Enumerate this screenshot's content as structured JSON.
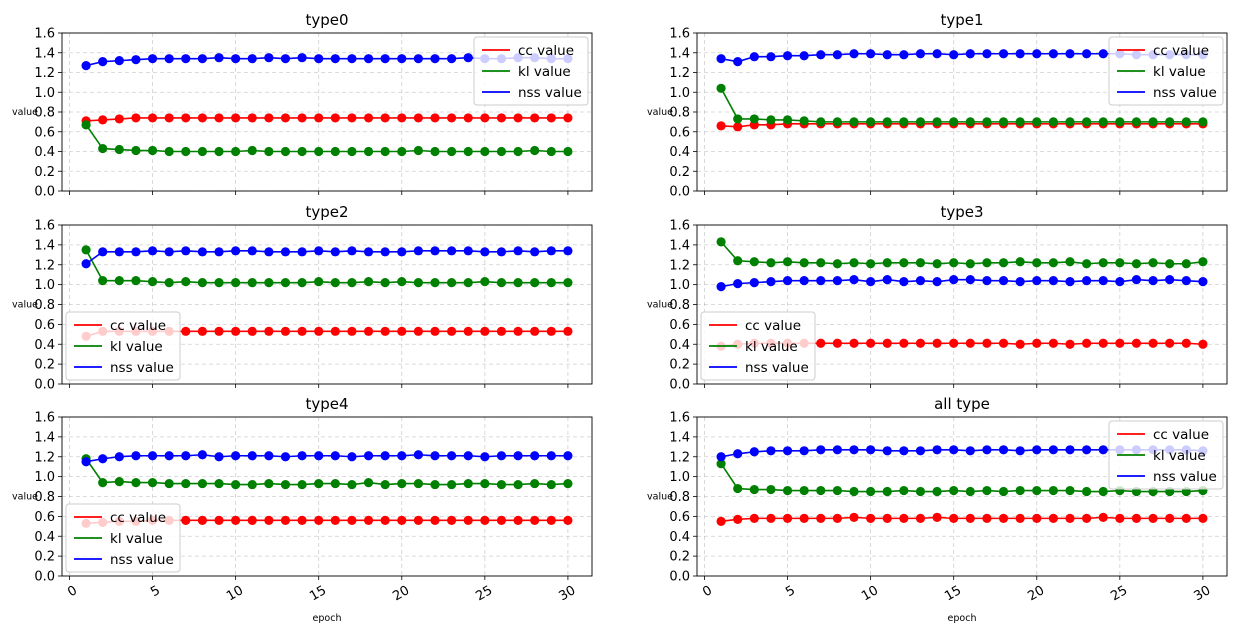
{
  "chart_data": [
    {
      "type": "line",
      "title": "type0",
      "ylabel": "value",
      "xlabel": "",
      "x": [
        1,
        2,
        3,
        4,
        5,
        6,
        7,
        8,
        9,
        10,
        11,
        12,
        13,
        14,
        15,
        16,
        17,
        18,
        19,
        20,
        21,
        22,
        23,
        24,
        25,
        26,
        27,
        28,
        29,
        30
      ],
      "xticks": [
        0,
        5,
        10,
        15,
        20,
        25,
        30
      ],
      "ylim": [
        0,
        1.6
      ],
      "yticks": [
        "0.0",
        "0.2",
        "0.4",
        "0.6",
        "0.8",
        "1.0",
        "1.2",
        "1.4",
        "1.6"
      ],
      "show_xticklabels": false,
      "grid": true,
      "legend": "top-right",
      "series": [
        {
          "name": "cc value",
          "color": "#ff0000",
          "values": [
            0.71,
            0.72,
            0.73,
            0.74,
            0.74,
            0.74,
            0.74,
            0.74,
            0.74,
            0.74,
            0.74,
            0.74,
            0.74,
            0.74,
            0.74,
            0.74,
            0.74,
            0.74,
            0.74,
            0.74,
            0.74,
            0.74,
            0.74,
            0.74,
            0.74,
            0.74,
            0.74,
            0.74,
            0.74,
            0.74
          ]
        },
        {
          "name": "kl value",
          "color": "#008000",
          "values": [
            0.67,
            0.43,
            0.42,
            0.41,
            0.41,
            0.4,
            0.4,
            0.4,
            0.4,
            0.4,
            0.41,
            0.4,
            0.4,
            0.4,
            0.4,
            0.4,
            0.4,
            0.4,
            0.4,
            0.4,
            0.41,
            0.4,
            0.4,
            0.4,
            0.4,
            0.4,
            0.4,
            0.41,
            0.4,
            0.4
          ]
        },
        {
          "name": "nss value",
          "color": "#0000ff",
          "values": [
            1.27,
            1.31,
            1.32,
            1.33,
            1.34,
            1.34,
            1.34,
            1.34,
            1.35,
            1.34,
            1.34,
            1.35,
            1.34,
            1.35,
            1.34,
            1.34,
            1.34,
            1.34,
            1.34,
            1.34,
            1.34,
            1.34,
            1.34,
            1.35,
            1.34,
            1.34,
            1.35,
            1.35,
            1.34,
            1.34
          ]
        }
      ]
    },
    {
      "type": "line",
      "title": "type1",
      "ylabel": "value",
      "xlabel": "",
      "x": [
        1,
        2,
        3,
        4,
        5,
        6,
        7,
        8,
        9,
        10,
        11,
        12,
        13,
        14,
        15,
        16,
        17,
        18,
        19,
        20,
        21,
        22,
        23,
        24,
        25,
        26,
        27,
        28,
        29,
        30
      ],
      "xticks": [
        0,
        5,
        10,
        15,
        20,
        25,
        30
      ],
      "ylim": [
        0,
        1.6
      ],
      "yticks": [
        "0.0",
        "0.2",
        "0.4",
        "0.6",
        "0.8",
        "1.0",
        "1.2",
        "1.4",
        "1.6"
      ],
      "show_xticklabels": false,
      "grid": true,
      "legend": "top-right",
      "series": [
        {
          "name": "cc value",
          "color": "#ff0000",
          "values": [
            0.66,
            0.65,
            0.67,
            0.67,
            0.68,
            0.68,
            0.68,
            0.68,
            0.68,
            0.68,
            0.68,
            0.68,
            0.68,
            0.68,
            0.68,
            0.68,
            0.68,
            0.68,
            0.68,
            0.68,
            0.68,
            0.68,
            0.68,
            0.68,
            0.68,
            0.68,
            0.68,
            0.68,
            0.68,
            0.68
          ]
        },
        {
          "name": "kl value",
          "color": "#008000",
          "values": [
            1.04,
            0.73,
            0.73,
            0.72,
            0.72,
            0.71,
            0.7,
            0.7,
            0.7,
            0.7,
            0.7,
            0.7,
            0.7,
            0.7,
            0.7,
            0.7,
            0.7,
            0.7,
            0.7,
            0.7,
            0.7,
            0.7,
            0.7,
            0.7,
            0.7,
            0.7,
            0.7,
            0.7,
            0.7,
            0.7
          ]
        },
        {
          "name": "nss value",
          "color": "#0000ff",
          "values": [
            1.34,
            1.31,
            1.36,
            1.36,
            1.37,
            1.37,
            1.38,
            1.38,
            1.39,
            1.39,
            1.38,
            1.38,
            1.39,
            1.39,
            1.38,
            1.39,
            1.39,
            1.39,
            1.39,
            1.39,
            1.39,
            1.39,
            1.39,
            1.39,
            1.39,
            1.38,
            1.38,
            1.38,
            1.38,
            1.38
          ]
        }
      ]
    },
    {
      "type": "line",
      "title": "type2",
      "ylabel": "value",
      "xlabel": "",
      "x": [
        1,
        2,
        3,
        4,
        5,
        6,
        7,
        8,
        9,
        10,
        11,
        12,
        13,
        14,
        15,
        16,
        17,
        18,
        19,
        20,
        21,
        22,
        23,
        24,
        25,
        26,
        27,
        28,
        29,
        30
      ],
      "xticks": [
        0,
        5,
        10,
        15,
        20,
        25,
        30
      ],
      "ylim": [
        0,
        1.6
      ],
      "yticks": [
        "0.0",
        "0.2",
        "0.4",
        "0.6",
        "0.8",
        "1.0",
        "1.2",
        "1.4",
        "1.6"
      ],
      "show_xticklabels": false,
      "grid": true,
      "legend": "bottom-left",
      "series": [
        {
          "name": "cc value",
          "color": "#ff0000",
          "values": [
            0.48,
            0.53,
            0.53,
            0.53,
            0.53,
            0.53,
            0.53,
            0.53,
            0.53,
            0.53,
            0.53,
            0.53,
            0.53,
            0.53,
            0.53,
            0.53,
            0.53,
            0.53,
            0.53,
            0.53,
            0.53,
            0.53,
            0.53,
            0.53,
            0.53,
            0.53,
            0.53,
            0.53,
            0.53,
            0.53
          ]
        },
        {
          "name": "kl value",
          "color": "#008000",
          "values": [
            1.35,
            1.04,
            1.04,
            1.04,
            1.03,
            1.02,
            1.03,
            1.02,
            1.02,
            1.02,
            1.02,
            1.02,
            1.02,
            1.02,
            1.03,
            1.02,
            1.02,
            1.03,
            1.02,
            1.03,
            1.02,
            1.02,
            1.02,
            1.02,
            1.03,
            1.02,
            1.02,
            1.02,
            1.02,
            1.02
          ]
        },
        {
          "name": "nss value",
          "color": "#0000ff",
          "values": [
            1.21,
            1.33,
            1.33,
            1.33,
            1.34,
            1.33,
            1.34,
            1.33,
            1.33,
            1.34,
            1.34,
            1.33,
            1.33,
            1.33,
            1.34,
            1.33,
            1.34,
            1.33,
            1.33,
            1.33,
            1.34,
            1.34,
            1.34,
            1.34,
            1.33,
            1.33,
            1.34,
            1.33,
            1.34,
            1.34
          ]
        }
      ]
    },
    {
      "type": "line",
      "title": "type3",
      "ylabel": "value",
      "xlabel": "",
      "x": [
        1,
        2,
        3,
        4,
        5,
        6,
        7,
        8,
        9,
        10,
        11,
        12,
        13,
        14,
        15,
        16,
        17,
        18,
        19,
        20,
        21,
        22,
        23,
        24,
        25,
        26,
        27,
        28,
        29,
        30
      ],
      "xticks": [
        0,
        5,
        10,
        15,
        20,
        25,
        30
      ],
      "ylim": [
        0,
        1.6
      ],
      "yticks": [
        "0.0",
        "0.2",
        "0.4",
        "0.6",
        "0.8",
        "1.0",
        "1.2",
        "1.4",
        "1.6"
      ],
      "show_xticklabels": false,
      "grid": true,
      "legend": "bottom-left",
      "series": [
        {
          "name": "cc value",
          "color": "#ff0000",
          "values": [
            0.38,
            0.4,
            0.41,
            0.41,
            0.41,
            0.41,
            0.41,
            0.41,
            0.41,
            0.41,
            0.41,
            0.41,
            0.41,
            0.41,
            0.41,
            0.41,
            0.41,
            0.41,
            0.4,
            0.41,
            0.41,
            0.4,
            0.41,
            0.41,
            0.41,
            0.41,
            0.41,
            0.41,
            0.41,
            0.4
          ]
        },
        {
          "name": "kl value",
          "color": "#008000",
          "values": [
            1.43,
            1.24,
            1.23,
            1.22,
            1.23,
            1.22,
            1.22,
            1.21,
            1.22,
            1.21,
            1.22,
            1.22,
            1.22,
            1.21,
            1.22,
            1.21,
            1.22,
            1.22,
            1.23,
            1.22,
            1.22,
            1.23,
            1.21,
            1.22,
            1.22,
            1.21,
            1.22,
            1.21,
            1.21,
            1.23
          ]
        },
        {
          "name": "nss value",
          "color": "#0000ff",
          "values": [
            0.98,
            1.01,
            1.02,
            1.03,
            1.04,
            1.04,
            1.04,
            1.04,
            1.05,
            1.03,
            1.05,
            1.03,
            1.04,
            1.03,
            1.05,
            1.05,
            1.04,
            1.04,
            1.03,
            1.04,
            1.04,
            1.03,
            1.04,
            1.04,
            1.03,
            1.05,
            1.04,
            1.05,
            1.04,
            1.03
          ]
        }
      ]
    },
    {
      "type": "line",
      "title": "type4",
      "ylabel": "value",
      "xlabel": "epoch",
      "x": [
        1,
        2,
        3,
        4,
        5,
        6,
        7,
        8,
        9,
        10,
        11,
        12,
        13,
        14,
        15,
        16,
        17,
        18,
        19,
        20,
        21,
        22,
        23,
        24,
        25,
        26,
        27,
        28,
        29,
        30
      ],
      "xticks": [
        0,
        5,
        10,
        15,
        20,
        25,
        30
      ],
      "ylim": [
        0,
        1.6
      ],
      "yticks": [
        "0.0",
        "0.2",
        "0.4",
        "0.6",
        "0.8",
        "1.0",
        "1.2",
        "1.4",
        "1.6"
      ],
      "show_xticklabels": true,
      "grid": true,
      "legend": "bottom-left",
      "series": [
        {
          "name": "cc value",
          "color": "#ff0000",
          "values": [
            0.53,
            0.54,
            0.55,
            0.55,
            0.56,
            0.56,
            0.56,
            0.56,
            0.56,
            0.56,
            0.56,
            0.56,
            0.56,
            0.56,
            0.56,
            0.56,
            0.56,
            0.56,
            0.56,
            0.56,
            0.56,
            0.56,
            0.56,
            0.56,
            0.56,
            0.56,
            0.56,
            0.56,
            0.56,
            0.56
          ]
        },
        {
          "name": "kl value",
          "color": "#008000",
          "values": [
            1.18,
            0.94,
            0.95,
            0.94,
            0.94,
            0.93,
            0.93,
            0.93,
            0.93,
            0.92,
            0.92,
            0.93,
            0.92,
            0.92,
            0.93,
            0.93,
            0.92,
            0.94,
            0.92,
            0.93,
            0.93,
            0.92,
            0.92,
            0.93,
            0.93,
            0.92,
            0.92,
            0.93,
            0.92,
            0.93
          ]
        },
        {
          "name": "nss value",
          "color": "#0000ff",
          "values": [
            1.15,
            1.18,
            1.2,
            1.21,
            1.21,
            1.21,
            1.21,
            1.22,
            1.2,
            1.21,
            1.21,
            1.21,
            1.2,
            1.21,
            1.21,
            1.21,
            1.2,
            1.21,
            1.21,
            1.21,
            1.22,
            1.21,
            1.21,
            1.21,
            1.2,
            1.21,
            1.21,
            1.21,
            1.21,
            1.21
          ]
        }
      ]
    },
    {
      "type": "line",
      "title": "all type",
      "ylabel": "value",
      "xlabel": "epoch",
      "x": [
        1,
        2,
        3,
        4,
        5,
        6,
        7,
        8,
        9,
        10,
        11,
        12,
        13,
        14,
        15,
        16,
        17,
        18,
        19,
        20,
        21,
        22,
        23,
        24,
        25,
        26,
        27,
        28,
        29,
        30
      ],
      "xticks": [
        0,
        5,
        10,
        15,
        20,
        25,
        30
      ],
      "ylim": [
        0,
        1.6
      ],
      "yticks": [
        "0.0",
        "0.2",
        "0.4",
        "0.6",
        "0.8",
        "1.0",
        "1.2",
        "1.4",
        "1.6"
      ],
      "show_xticklabels": true,
      "grid": true,
      "legend": "top-right",
      "series": [
        {
          "name": "cc value",
          "color": "#ff0000",
          "values": [
            0.55,
            0.57,
            0.58,
            0.58,
            0.58,
            0.58,
            0.58,
            0.58,
            0.59,
            0.58,
            0.58,
            0.58,
            0.58,
            0.59,
            0.58,
            0.58,
            0.58,
            0.58,
            0.58,
            0.58,
            0.58,
            0.58,
            0.58,
            0.59,
            0.58,
            0.58,
            0.58,
            0.58,
            0.58,
            0.58
          ]
        },
        {
          "name": "kl value",
          "color": "#008000",
          "values": [
            1.13,
            0.88,
            0.87,
            0.87,
            0.86,
            0.86,
            0.86,
            0.86,
            0.85,
            0.85,
            0.85,
            0.86,
            0.85,
            0.85,
            0.86,
            0.85,
            0.86,
            0.85,
            0.86,
            0.86,
            0.86,
            0.86,
            0.85,
            0.85,
            0.86,
            0.85,
            0.85,
            0.85,
            0.85,
            0.86
          ]
        },
        {
          "name": "nss value",
          "color": "#0000ff",
          "values": [
            1.2,
            1.23,
            1.25,
            1.26,
            1.26,
            1.26,
            1.27,
            1.27,
            1.27,
            1.27,
            1.26,
            1.26,
            1.26,
            1.27,
            1.27,
            1.26,
            1.27,
            1.27,
            1.26,
            1.27,
            1.27,
            1.27,
            1.27,
            1.27,
            1.27,
            1.27,
            1.27,
            1.27,
            1.27,
            1.26
          ]
        }
      ]
    }
  ]
}
